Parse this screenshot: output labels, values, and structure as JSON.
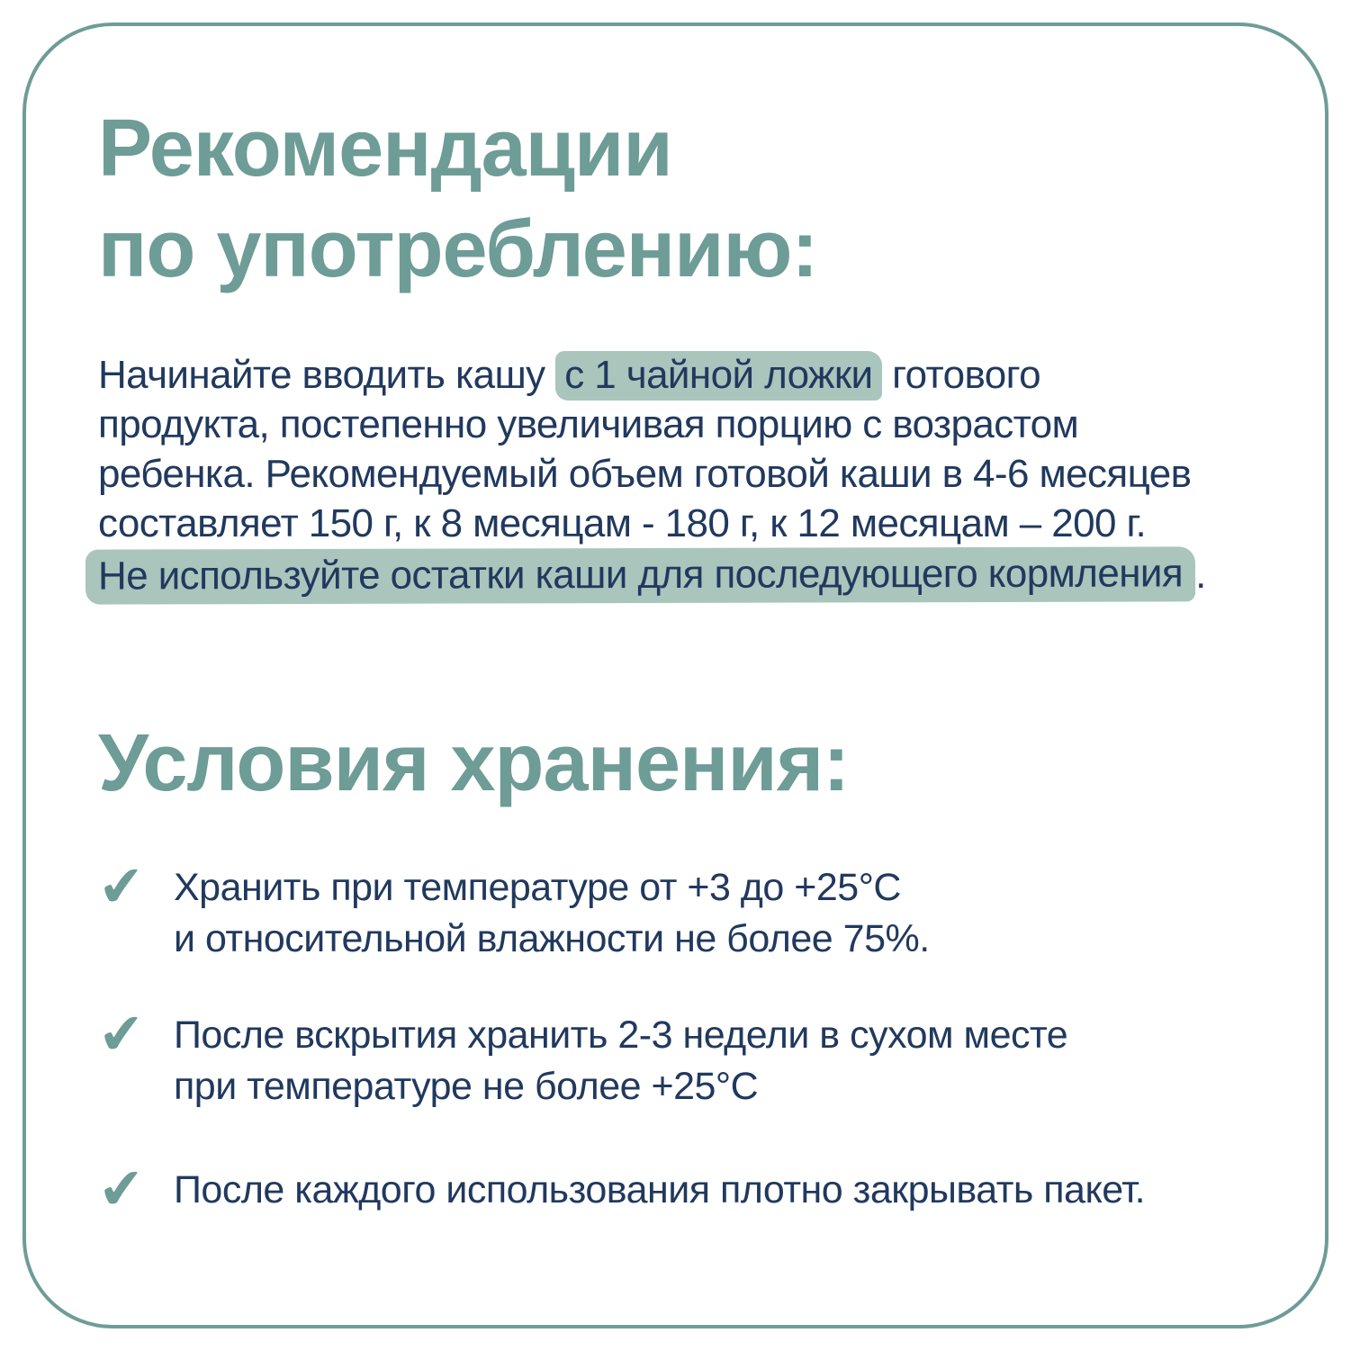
{
  "colors": {
    "accent": "#6E9C96",
    "text": "#21395E",
    "highlight": "#A9C5BC"
  },
  "recommendations": {
    "title_line1": "Рекомендации",
    "title_line2": "по употреблению:",
    "paragraph": [
      {
        "pre": "Начинайте вводить кашу ",
        "highlight": "с 1 чайной ложки",
        "post": " готового"
      },
      {
        "text": "продукта, постепенно увеличивая порцию с возрастом"
      },
      {
        "text": "ребенка. Рекомендуемый объем готовой каши в 4-6 месяцев"
      },
      {
        "text": "составляет 150 г, к 8 месяцам - 180 г, к 12 месяцам – 200 г."
      },
      {
        "highlight": "Не используйте остатки каши для последующего кормления",
        "post": "."
      }
    ]
  },
  "storage": {
    "title": "Условия хранения:",
    "check_icon": "✔",
    "items": [
      {
        "lines": [
          "Хранить при температуре от +3 до +25°С",
          "и относительной влажности не более 75%."
        ]
      },
      {
        "lines": [
          "После вскрытия хранить 2-3 недели в сухом месте",
          "при температуре не более +25°С"
        ]
      },
      {
        "lines": [
          "После каждого использования плотно закрывать пакет."
        ]
      }
    ]
  }
}
